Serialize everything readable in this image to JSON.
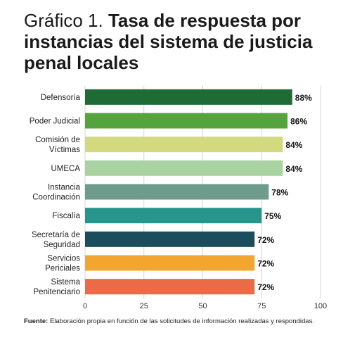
{
  "title": {
    "prefix": "Gráfico 1.",
    "main": "Tasa de respuesta por instancias del sistema de justicia penal locales"
  },
  "chart_data": {
    "type": "bar",
    "orientation": "horizontal",
    "categories": [
      [
        "Defensoría"
      ],
      [
        "Poder Judicial"
      ],
      [
        "Comisión de",
        "Víctimas"
      ],
      [
        "UMECA"
      ],
      [
        "Instancia",
        "Coordinación"
      ],
      [
        "Fiscalía"
      ],
      [
        "Secretaría de",
        "Seguridad"
      ],
      [
        "Servicios",
        "Periciales"
      ],
      [
        "Sistema",
        "Penitenciario"
      ]
    ],
    "values": [
      88,
      86,
      84,
      84,
      78,
      75,
      72,
      72,
      72
    ],
    "value_labels": [
      "88%",
      "86%",
      "84%",
      "84%",
      "78%",
      "75%",
      "72%",
      "72%",
      "72%"
    ],
    "colors": [
      "#1e6b35",
      "#55a33c",
      "#d3d97e",
      "#a9d3a0",
      "#6d9b8c",
      "#26968d",
      "#1b4d5c",
      "#f2a630",
      "#ea6b45"
    ],
    "xlim": [
      0,
      100
    ],
    "xticks": [
      0,
      25,
      50,
      75,
      100
    ],
    "grid": true
  },
  "source": {
    "label": "Fuente:",
    "text": "Elaboración propia en función de las solicitudes de información realizadas y respondidas."
  }
}
